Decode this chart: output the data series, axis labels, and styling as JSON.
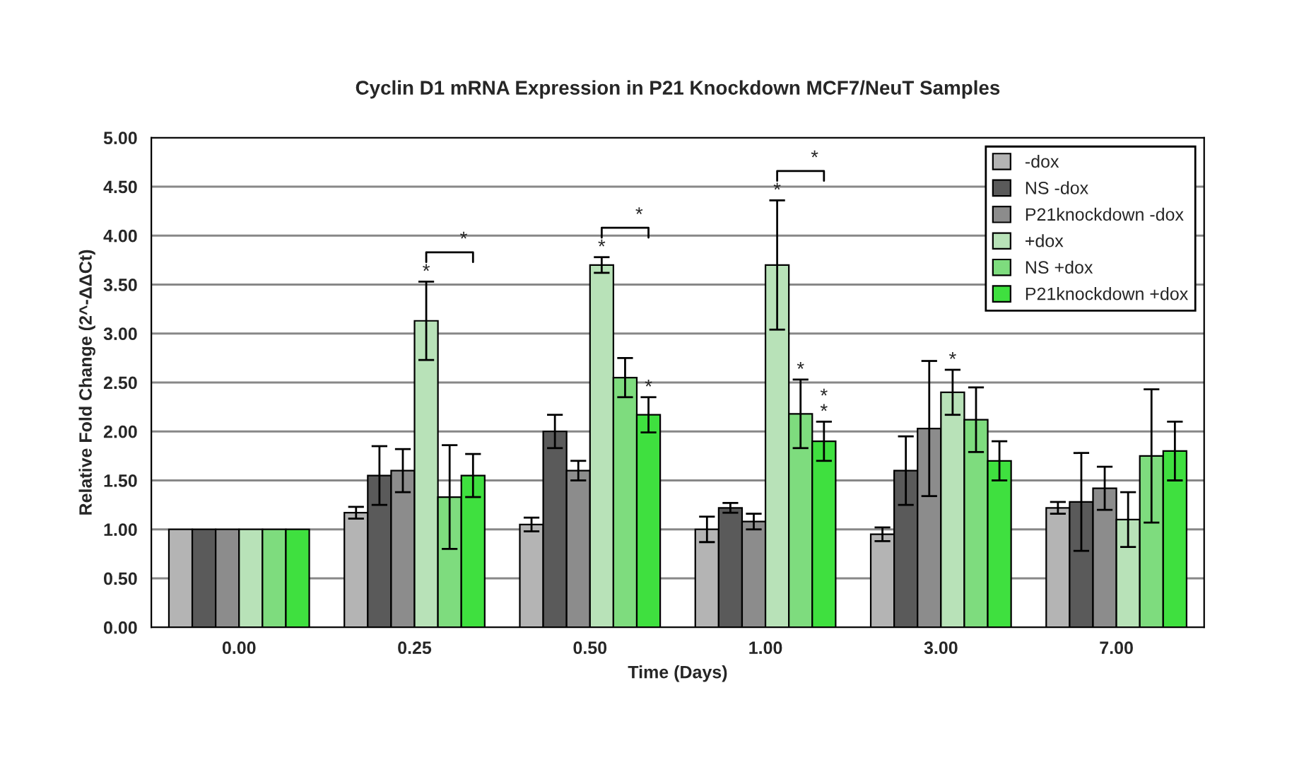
{
  "chart_data": {
    "type": "bar",
    "title": "Cyclin D1 mRNA Expression in P21 Knockdown MCF7/NeuT Samples",
    "xlabel": "Time (Days)",
    "ylabel": "Relative Fold Change (2^-ΔΔCt)",
    "categories": [
      "0.00",
      "0.25",
      "0.50",
      "1.00",
      "3.00",
      "7.00"
    ],
    "series": [
      {
        "name": "-dox",
        "color": "#b4b4b4",
        "values": [
          1.0,
          1.17,
          1.05,
          1.0,
          0.95,
          1.22
        ],
        "errors": [
          null,
          0.06,
          0.07,
          0.13,
          0.07,
          0.06
        ]
      },
      {
        "name": "NS -dox",
        "color": "#5a5a5a",
        "values": [
          1.0,
          1.55,
          2.0,
          1.22,
          1.6,
          1.28
        ],
        "errors": [
          null,
          0.3,
          0.17,
          0.05,
          0.35,
          0.5
        ]
      },
      {
        "name": "P21knockdown -dox",
        "color": "#8c8c8c",
        "values": [
          1.0,
          1.6,
          1.6,
          1.08,
          2.03,
          1.42
        ],
        "errors": [
          null,
          0.22,
          0.1,
          0.08,
          0.69,
          0.22
        ]
      },
      {
        "name": "+dox",
        "color": "#b8e2b8",
        "values": [
          1.0,
          3.13,
          3.7,
          3.7,
          2.4,
          1.1
        ],
        "errors": [
          null,
          0.4,
          0.08,
          0.66,
          0.23,
          0.28
        ]
      },
      {
        "name": "NS +dox",
        "color": "#7edc7e",
        "values": [
          1.0,
          1.33,
          2.55,
          2.18,
          2.12,
          1.75
        ],
        "errors": [
          null,
          0.53,
          0.2,
          0.35,
          0.33,
          0.68
        ]
      },
      {
        "name": "P21knockdown +dox",
        "color": "#3fe03f",
        "values": [
          1.0,
          1.55,
          2.17,
          1.9,
          1.7,
          1.8
        ],
        "errors": [
          null,
          0.22,
          0.18,
          0.2,
          0.2,
          0.3
        ]
      }
    ],
    "ylim": [
      0,
      5
    ],
    "yticks": [
      {
        "value": 0,
        "label": "0.00"
      },
      {
        "value": 0.5,
        "label": "0.50"
      },
      {
        "value": 1,
        "label": "1.00"
      },
      {
        "value": 1.5,
        "label": "1.50"
      },
      {
        "value": 2,
        "label": "2.00"
      },
      {
        "value": 2.5,
        "label": "2.50"
      },
      {
        "value": 3,
        "label": "3.00"
      },
      {
        "value": 3.5,
        "label": "3.50"
      },
      {
        "value": 4,
        "label": "4.00"
      },
      {
        "value": 4.5,
        "label": "4.50"
      },
      {
        "value": 5,
        "label": "5.00"
      }
    ],
    "grid": "y",
    "legend": "top right",
    "annotations": [
      {
        "text": "*",
        "x": "0.25",
        "y": 3.53
      },
      "*",
      {
        "text": "*",
        "x": "0.50",
        "y": 3.78
      },
      "*",
      {
        "text": "*",
        "x": "0.50",
        "y": 2.35
      },
      {
        "text": "*",
        "x": "1.00",
        "y": 4.36
      },
      "*",
      {
        "text": "*",
        "x": "1.00",
        "y": 2.53
      },
      {
        "text": "*\n*",
        "x": "1.00",
        "y": 2.1
      },
      {
        "text": "*",
        "x": "3.00",
        "y": 2.63
      }
    ]
  }
}
